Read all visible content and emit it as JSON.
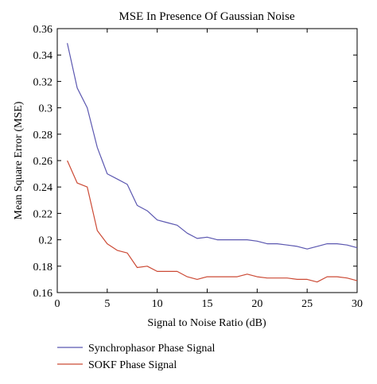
{
  "chart_data": {
    "type": "line",
    "title": "MSE In Presence Of Gaussian Noise",
    "xlabel": "Signal to Noise Ratio (dB)",
    "ylabel": "Mean Square Error (MSE)",
    "xlim": [
      0,
      30
    ],
    "ylim": [
      0.16,
      0.36
    ],
    "xticks": [
      0,
      5,
      10,
      15,
      20,
      25,
      30
    ],
    "yticks": [
      0.16,
      0.18,
      0.2,
      0.22,
      0.24,
      0.26,
      0.28,
      0.3,
      0.32,
      0.34,
      0.36
    ],
    "ytick_labels": [
      "0.16",
      "0.18",
      "0.2",
      "0.22",
      "0.24",
      "0.26",
      "0.28",
      "0.3",
      "0.32",
      "0.34",
      "0.36"
    ],
    "grid": false,
    "legend_position": "bottom-left",
    "x": [
      1,
      2,
      3,
      4,
      5,
      6,
      7,
      8,
      9,
      10,
      11,
      12,
      13,
      14,
      15,
      16,
      17,
      18,
      19,
      20,
      21,
      22,
      23,
      24,
      25,
      26,
      27,
      28,
      29,
      30
    ],
    "series": [
      {
        "name": "Synchrophasor Phase Signal",
        "color": "#5b57b0",
        "values": [
          0.349,
          0.315,
          0.3,
          0.27,
          0.25,
          0.246,
          0.242,
          0.226,
          0.222,
          0.215,
          0.213,
          0.211,
          0.205,
          0.201,
          0.202,
          0.2,
          0.2,
          0.2,
          0.2,
          0.199,
          0.197,
          0.197,
          0.196,
          0.195,
          0.193,
          0.195,
          0.197,
          0.197,
          0.196,
          0.194
        ]
      },
      {
        "name": "SOKF Phase Signal",
        "color": "#cc4a35",
        "values": [
          0.26,
          0.243,
          0.24,
          0.207,
          0.197,
          0.192,
          0.19,
          0.179,
          0.18,
          0.176,
          0.176,
          0.176,
          0.172,
          0.17,
          0.172,
          0.172,
          0.172,
          0.172,
          0.174,
          0.172,
          0.171,
          0.171,
          0.171,
          0.17,
          0.17,
          0.168,
          0.172,
          0.172,
          0.171,
          0.169
        ]
      }
    ]
  }
}
